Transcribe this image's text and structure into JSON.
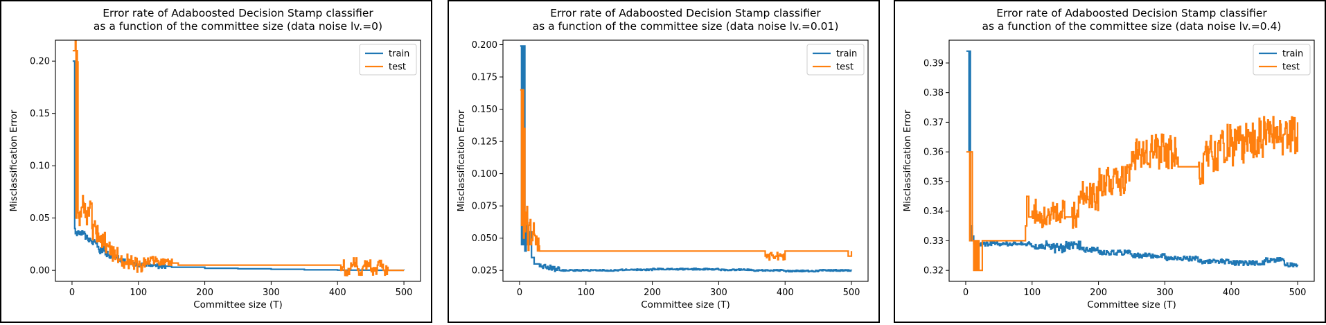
{
  "colors": {
    "train": "#1f77b4",
    "test": "#ff7f0e"
  },
  "chart_data": [
    {
      "type": "line",
      "title": "Error rate of Adaboosted Decision Stamp classifier",
      "subtitle": "as a function of the committee size (data noise lv.=0)",
      "xlabel": "Committee size (T)",
      "ylabel": "Misclassification Error",
      "xlim": [
        -25,
        525
      ],
      "ylim": [
        -0.0105,
        0.22
      ],
      "xticks": [
        0,
        100,
        200,
        300,
        400,
        500
      ],
      "yticks": [
        0.0,
        0.05,
        0.1,
        0.15,
        0.2
      ],
      "ytick_labels": [
        "0.00",
        "0.05",
        "0.10",
        "0.15",
        "0.20"
      ],
      "legend": "top-right",
      "grid": false,
      "series": [
        {
          "name": "train",
          "color": "#1f77b4",
          "x": [
            1,
            3,
            4,
            5,
            6,
            8,
            10,
            14,
            20,
            30,
            40,
            50,
            60,
            70,
            80,
            90,
            100,
            120,
            150,
            200,
            250,
            300,
            350,
            400,
            450,
            500
          ],
          "y": [
            0.2,
            0.2,
            0.04,
            0.035,
            0.037,
            0.036,
            0.035,
            0.034,
            0.03,
            0.026,
            0.02,
            0.015,
            0.012,
            0.009,
            0.007,
            0.006,
            0.005,
            0.004,
            0.003,
            0.002,
            0.0015,
            0.001,
            0.0005,
            0.0002,
            0.0001,
            0.0
          ]
        },
        {
          "name": "test",
          "color": "#ff7f0e",
          "x": [
            1,
            3,
            4,
            6,
            7,
            9,
            10,
            14,
            18,
            24,
            30,
            36,
            42,
            50,
            60,
            70,
            80,
            90,
            100,
            110,
            130,
            160,
            200,
            300,
            400,
            410,
            420,
            430,
            440,
            450,
            460,
            470,
            480,
            500
          ],
          "y": [
            0.21,
            0.21,
            0.21,
            0.05,
            0.21,
            0.055,
            0.05,
            0.06,
            0.055,
            0.06,
            0.04,
            0.035,
            0.03,
            0.02,
            0.015,
            0.01,
            0.008,
            0.006,
            0.005,
            0.01,
            0.007,
            0.005,
            0.005,
            0.005,
            0.005,
            0.0,
            0.007,
            0.0,
            0.005,
            0.0,
            0.005,
            0.0,
            0.0,
            0.0
          ]
        }
      ],
      "wiggle": {
        "train": [
          [
            5,
            60,
            0.004
          ],
          [
            60,
            140,
            0.002
          ]
        ],
        "test": [
          [
            5,
            35,
            0.012
          ],
          [
            35,
            110,
            0.008
          ],
          [
            110,
            150,
            0.004
          ],
          [
            405,
            475,
            0.005
          ]
        ]
      }
    },
    {
      "type": "line",
      "title": "Error rate of Adaboosted Decision Stamp classifier",
      "subtitle": "as a function of the committee size (data noise lv.=0.01)",
      "xlabel": "Committee size (T)",
      "ylabel": "Misclassification Error",
      "xlim": [
        -25,
        525
      ],
      "ylim": [
        0.0165,
        0.2035
      ],
      "xticks": [
        0,
        100,
        200,
        300,
        400,
        500
      ],
      "yticks": [
        0.025,
        0.05,
        0.075,
        0.1,
        0.125,
        0.15,
        0.175,
        0.2
      ],
      "ytick_labels": [
        "0.025",
        "0.050",
        "0.075",
        "0.100",
        "0.125",
        "0.150",
        "0.175",
        "0.200"
      ],
      "legend": "top-right",
      "grid": false,
      "series": [
        {
          "name": "train",
          "color": "#1f77b4",
          "x": [
            1,
            2,
            3,
            4,
            5,
            6,
            8,
            10,
            12,
            15,
            18,
            22,
            26,
            30,
            40,
            50,
            60,
            80,
            100,
            150,
            200,
            250,
            300,
            350,
            400,
            450,
            500
          ],
          "y": [
            0.199,
            0.199,
            0.045,
            0.199,
            0.045,
            0.199,
            0.04,
            0.065,
            0.045,
            0.055,
            0.035,
            0.03,
            0.03,
            0.028,
            0.027,
            0.026,
            0.025,
            0.025,
            0.025,
            0.0255,
            0.026,
            0.026,
            0.0255,
            0.025,
            0.0245,
            0.025,
            0.025
          ]
        },
        {
          "name": "test",
          "color": "#ff7f0e",
          "x": [
            1,
            2,
            3,
            5,
            6,
            7,
            8,
            10,
            12,
            14,
            17,
            20,
            24,
            28,
            30,
            60,
            100,
            200,
            300,
            370,
            400,
            410,
            490,
            495,
            500
          ],
          "y": [
            0.165,
            0.165,
            0.06,
            0.165,
            0.05,
            0.135,
            0.055,
            0.07,
            0.045,
            0.06,
            0.045,
            0.055,
            0.045,
            0.05,
            0.04,
            0.04,
            0.04,
            0.04,
            0.04,
            0.036,
            0.04,
            0.04,
            0.04,
            0.036,
            0.04
          ]
        }
      ],
      "wiggle": {
        "train": [
          [
            30,
            60,
            0.002
          ],
          [
            60,
            500,
            0.0006
          ]
        ],
        "test": [
          [
            5,
            30,
            0.008
          ],
          [
            370,
            400,
            0.003
          ]
        ]
      }
    },
    {
      "type": "line",
      "title": "Error rate of Adaboosted Decision Stamp classifier",
      "subtitle": "as a function of the committee size (data noise lv.=0.4)",
      "xlabel": "Committee size (T)",
      "ylabel": "Misclassification Error",
      "xlim": [
        -25,
        525
      ],
      "ylim": [
        0.3163,
        0.3977
      ],
      "xticks": [
        0,
        100,
        200,
        300,
        400,
        500
      ],
      "yticks": [
        0.32,
        0.33,
        0.34,
        0.35,
        0.36,
        0.37,
        0.38,
        0.39
      ],
      "ytick_labels": [
        "0.32",
        "0.33",
        "0.34",
        "0.35",
        "0.36",
        "0.37",
        "0.38",
        "0.39"
      ],
      "legend": "top-right",
      "grid": false,
      "series": [
        {
          "name": "train",
          "color": "#1f77b4",
          "x": [
            1,
            3,
            4,
            5,
            6,
            7,
            8,
            10,
            12,
            15,
            20,
            30,
            50,
            80,
            100,
            120,
            130,
            150,
            175,
            200,
            250,
            300,
            350,
            400,
            450,
            480,
            500
          ],
          "y": [
            0.394,
            0.394,
            0.394,
            0.36,
            0.394,
            0.33,
            0.335,
            0.331,
            0.329,
            0.328,
            0.329,
            0.329,
            0.329,
            0.329,
            0.328,
            0.3285,
            0.3275,
            0.3285,
            0.327,
            0.326,
            0.325,
            0.324,
            0.323,
            0.3225,
            0.3235,
            0.322,
            0.3215
          ]
        },
        {
          "name": "test",
          "color": "#ff7f0e",
          "x": [
            1,
            3,
            5,
            6,
            7,
            10,
            12,
            14,
            16,
            18,
            20,
            25,
            40,
            60,
            85,
            90,
            92,
            95,
            100,
            110,
            130,
            150,
            170,
            200,
            240,
            250,
            300,
            320,
            350,
            360,
            370,
            380,
            400,
            420,
            440,
            460,
            480,
            500
          ],
          "y": [
            0.36,
            0.36,
            0.36,
            0.33,
            0.36,
            0.33,
            0.32,
            0.33,
            0.32,
            0.33,
            0.32,
            0.33,
            0.33,
            0.33,
            0.33,
            0.335,
            0.345,
            0.338,
            0.34,
            0.338,
            0.34,
            0.338,
            0.345,
            0.35,
            0.355,
            0.36,
            0.36,
            0.355,
            0.355,
            0.36,
            0.36,
            0.363,
            0.362,
            0.365,
            0.365,
            0.366,
            0.366,
            0.37
          ]
        }
      ],
      "wiggle": {
        "train": [
          [
            10,
            500,
            0.0008
          ],
          [
            120,
            175,
            0.0015
          ]
        ],
        "test": [
          [
            100,
            150,
            0.004
          ],
          [
            160,
            240,
            0.005
          ],
          [
            240,
            320,
            0.006
          ],
          [
            350,
            500,
            0.007
          ]
        ]
      }
    }
  ]
}
